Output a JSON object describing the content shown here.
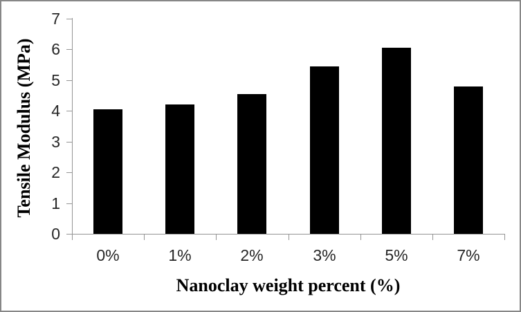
{
  "chart_data": {
    "type": "bar",
    "categories": [
      "0%",
      "1%",
      "2%",
      "3%",
      "5%",
      "7%"
    ],
    "values": [
      4.05,
      4.2,
      4.55,
      5.45,
      6.05,
      4.8
    ],
    "title": "",
    "xlabel": "Nanoclay weight percent (%)",
    "ylabel": "Tensile Modulus (MPa)",
    "ylim": [
      0,
      7
    ],
    "yticks": [
      0,
      1,
      2,
      3,
      4,
      5,
      6,
      7
    ],
    "grid": false,
    "legend_position": "none",
    "bar_color": "#000000",
    "axis_color": "#949494",
    "tick_label_color": "#262626",
    "title_color": "#000000",
    "border_color": "#878787"
  }
}
